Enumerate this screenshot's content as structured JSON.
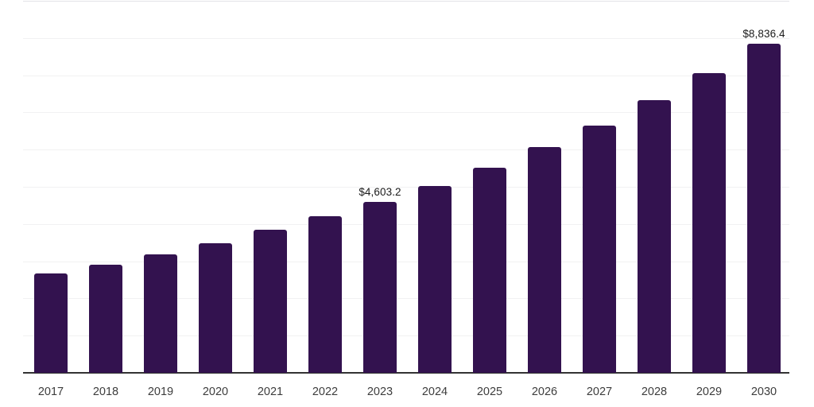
{
  "chart_data": {
    "type": "bar",
    "title": "",
    "xlabel": "",
    "ylabel": "",
    "categories": [
      "2017",
      "2018",
      "2019",
      "2020",
      "2021",
      "2022",
      "2023",
      "2024",
      "2025",
      "2026",
      "2027",
      "2028",
      "2029",
      "2030"
    ],
    "values": [
      2665,
      2910,
      3185,
      3485,
      3840,
      4215,
      4603.2,
      5020,
      5515,
      6070,
      6645,
      7335,
      8050,
      8836.4
    ],
    "data_labels": [
      "",
      "",
      "",
      "",
      "",
      "",
      "$4,603.2",
      "",
      "",
      "",
      "",
      "",
      "",
      "$8,836.4"
    ],
    "ylim": [
      0,
      10000
    ],
    "gridline_step": 1000,
    "grid": "horizontal",
    "legend": "none",
    "y_axis_tick_labels": "none"
  },
  "styles": {
    "background_color": "#ffffff",
    "bar_color": "#33124F",
    "gridline_color": "#f1f1f2",
    "plot_top_line_color": "#e3e3e7",
    "axis_line_color": "#333333",
    "tick_label_color": "#3d3d3d",
    "value_label_color": "#1a1a1a"
  }
}
